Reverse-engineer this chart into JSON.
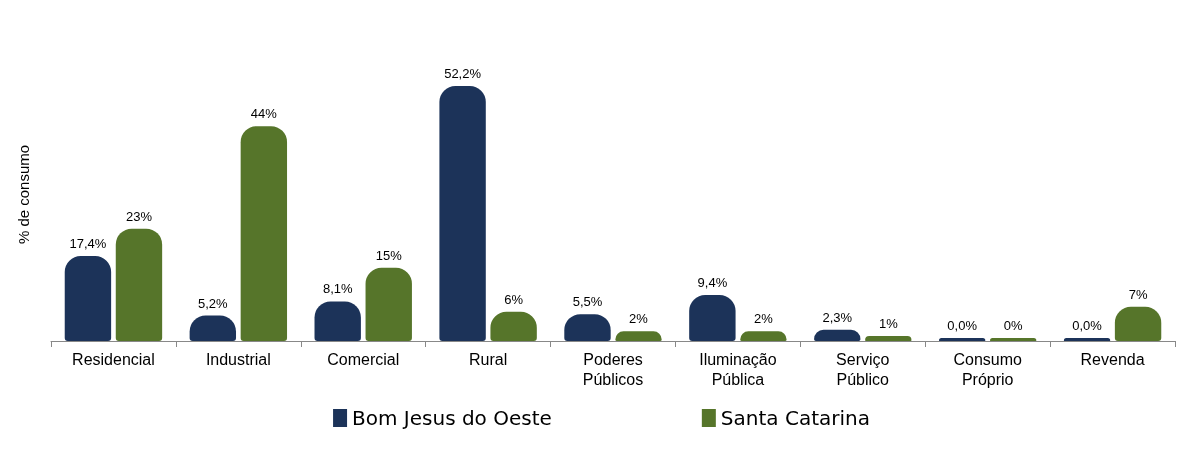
{
  "chart_data": {
    "type": "bar",
    "ylabel": "% de consumo",
    "categories": [
      "Residencial",
      "Industrial",
      "Comercial",
      "Rural",
      "Poderes\nPúblicos",
      "Iluminação\nPública",
      "Serviço\nPúblico",
      "Consumo\nPróprio",
      "Revenda"
    ],
    "series": [
      {
        "name": "Bom Jesus do Oeste",
        "color": "#1c3359",
        "values": [
          17.4,
          5.2,
          8.1,
          52.2,
          5.5,
          9.4,
          2.3,
          0.0,
          0.0
        ],
        "value_labels": [
          "17,4%",
          "5,2%",
          "8,1%",
          "52,2%",
          "5,5%",
          "9,4%",
          "2,3%",
          "0,0%",
          "0,0%"
        ]
      },
      {
        "name": "Santa Catarina",
        "color": "#56752a",
        "values": [
          23,
          44,
          15,
          6,
          2,
          2,
          1,
          0,
          7
        ],
        "value_labels": [
          "23%",
          "44%",
          "15%",
          "6%",
          "2%",
          "2%",
          "1%",
          "0%",
          "7%"
        ]
      }
    ],
    "legend": "bottom",
    "grid": false,
    "tick_labels": "x"
  }
}
